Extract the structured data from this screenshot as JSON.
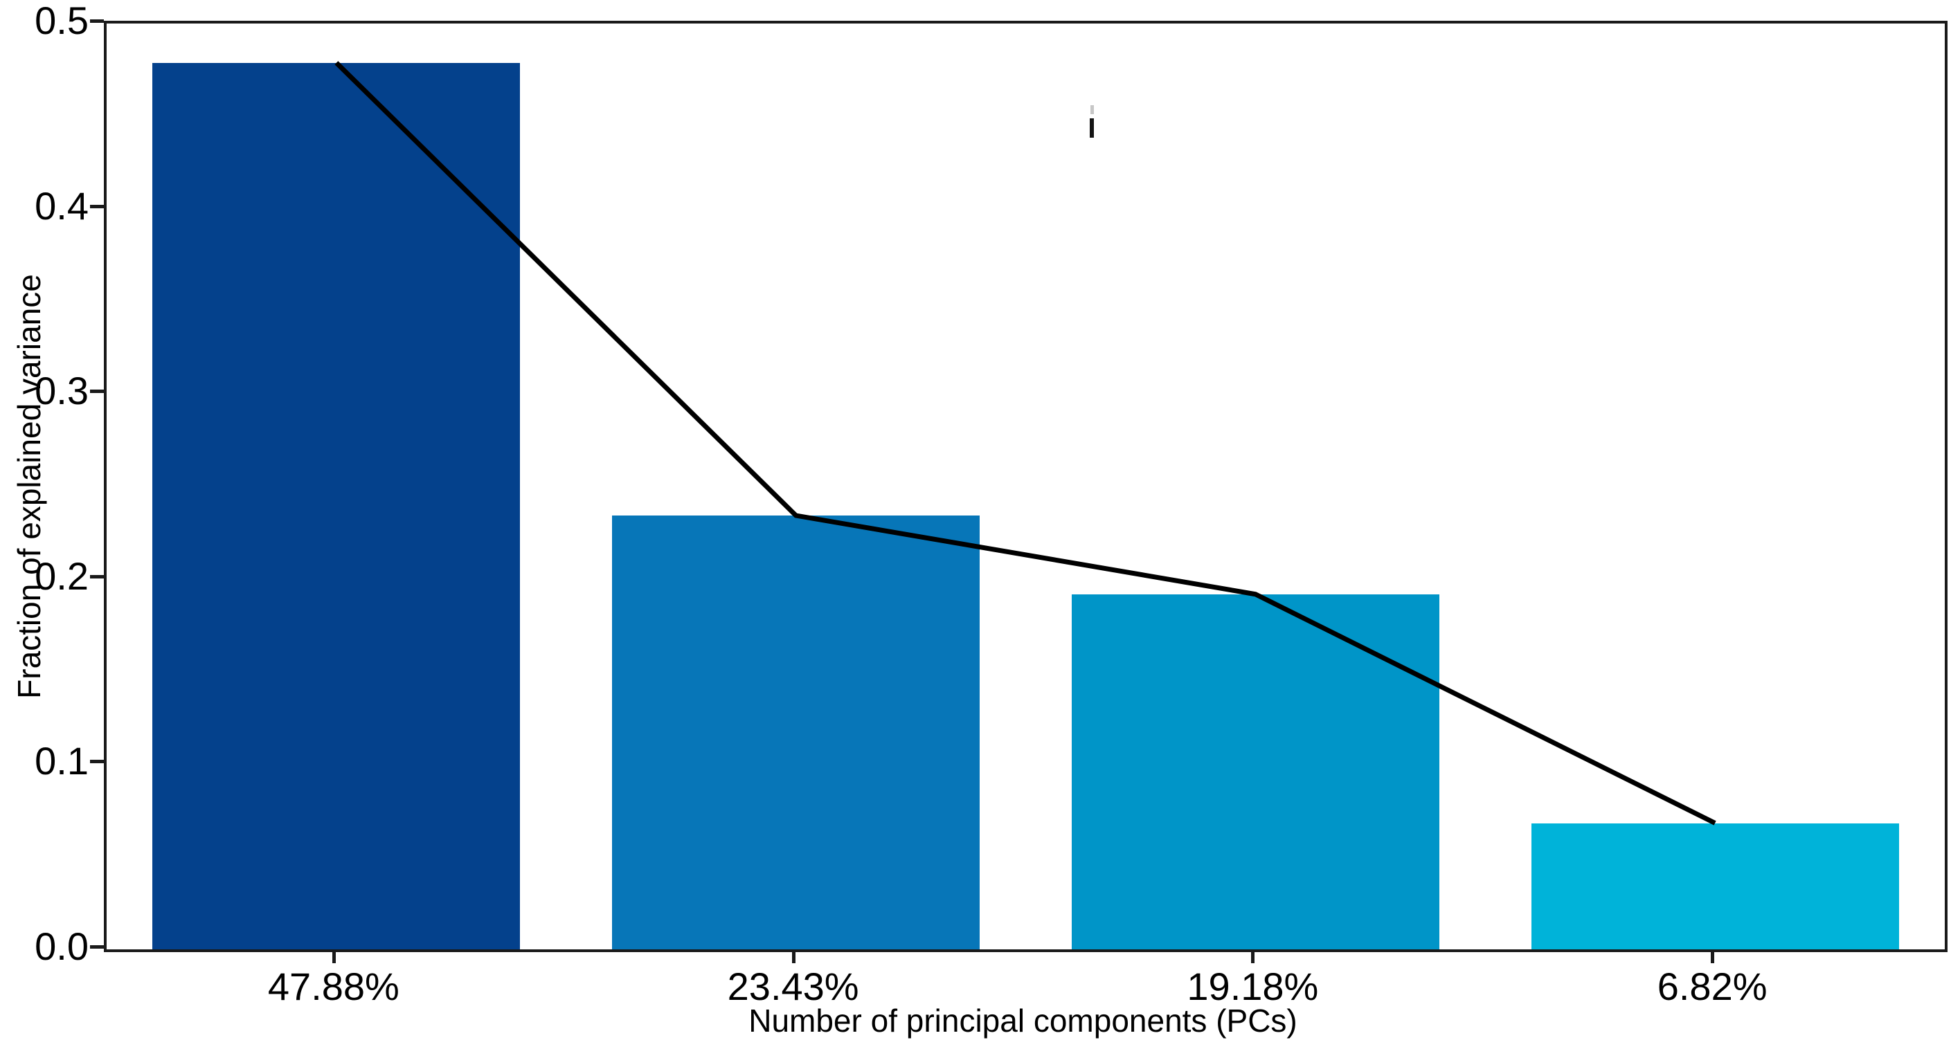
{
  "chart_data": {
    "type": "bar",
    "subtype": "scree-plot-with-cumulative-line",
    "categories": [
      "47.88%",
      "23.43%",
      "19.18%",
      "6.82%"
    ],
    "values": [
      0.4788,
      0.2343,
      0.1918,
      0.0682
    ],
    "series": [
      {
        "name": "fraction-of-explained-variance-bars",
        "type": "bar",
        "values": [
          0.4788,
          0.2343,
          0.1918,
          0.0682
        ]
      },
      {
        "name": "variance-trend-line",
        "type": "line",
        "values": [
          0.4788,
          0.2343,
          0.1918,
          0.0682
        ]
      }
    ],
    "title": "",
    "xlabel": "Number of principal components (PCs)",
    "ylabel": "Fraction of explained variance",
    "ylim": [
      0.0,
      0.5
    ],
    "yticks": [
      "0.0",
      "0.1",
      "0.2",
      "0.3",
      "0.4",
      "0.5"
    ],
    "grid": false,
    "legend_position": "none",
    "bar_width_fraction": 0.8,
    "colors": {
      "bars": [
        "#04418c",
        "#0776b8",
        "#0095c8",
        "#00b3d9"
      ],
      "line": "#000000",
      "axis": "#1a1a1a",
      "background": "#ffffff"
    }
  }
}
